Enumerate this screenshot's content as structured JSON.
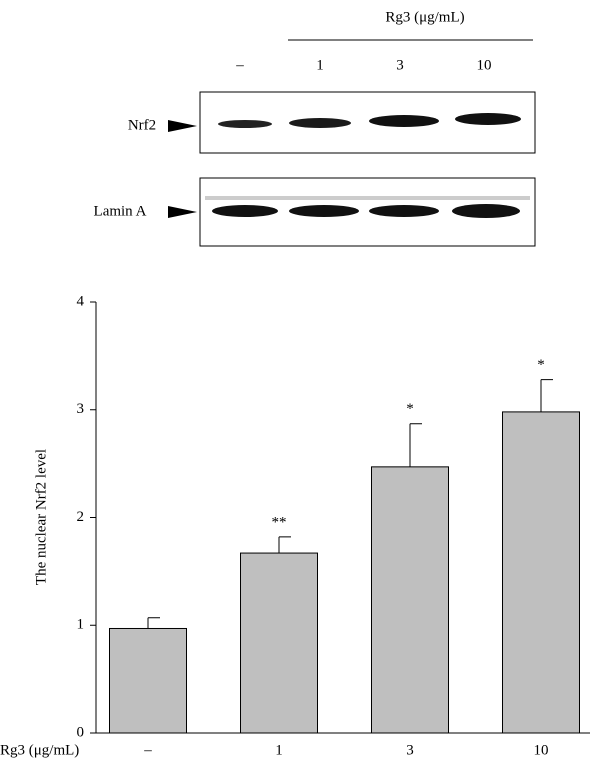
{
  "blot": {
    "treatment_label": "Rg3 (μg/mL)",
    "lanes": [
      "–",
      "1",
      "3",
      "10"
    ],
    "rows": [
      "Nrf2",
      "Lamin A"
    ]
  },
  "chart_data": {
    "type": "bar",
    "x_label": "Rg3 (μg/mL)",
    "y_label": "The nuclear Nrf2 level",
    "categories": [
      "–",
      "1",
      "3",
      "10"
    ],
    "values": [
      0.97,
      1.67,
      2.47,
      2.98
    ],
    "errors": [
      0.1,
      0.15,
      0.4,
      0.3
    ],
    "annotations": [
      null,
      "**",
      "*",
      "*"
    ],
    "color": "#bfbfbf",
    "ylim": [
      0,
      4
    ],
    "yticks": [
      0,
      1,
      2,
      3,
      4
    ]
  }
}
